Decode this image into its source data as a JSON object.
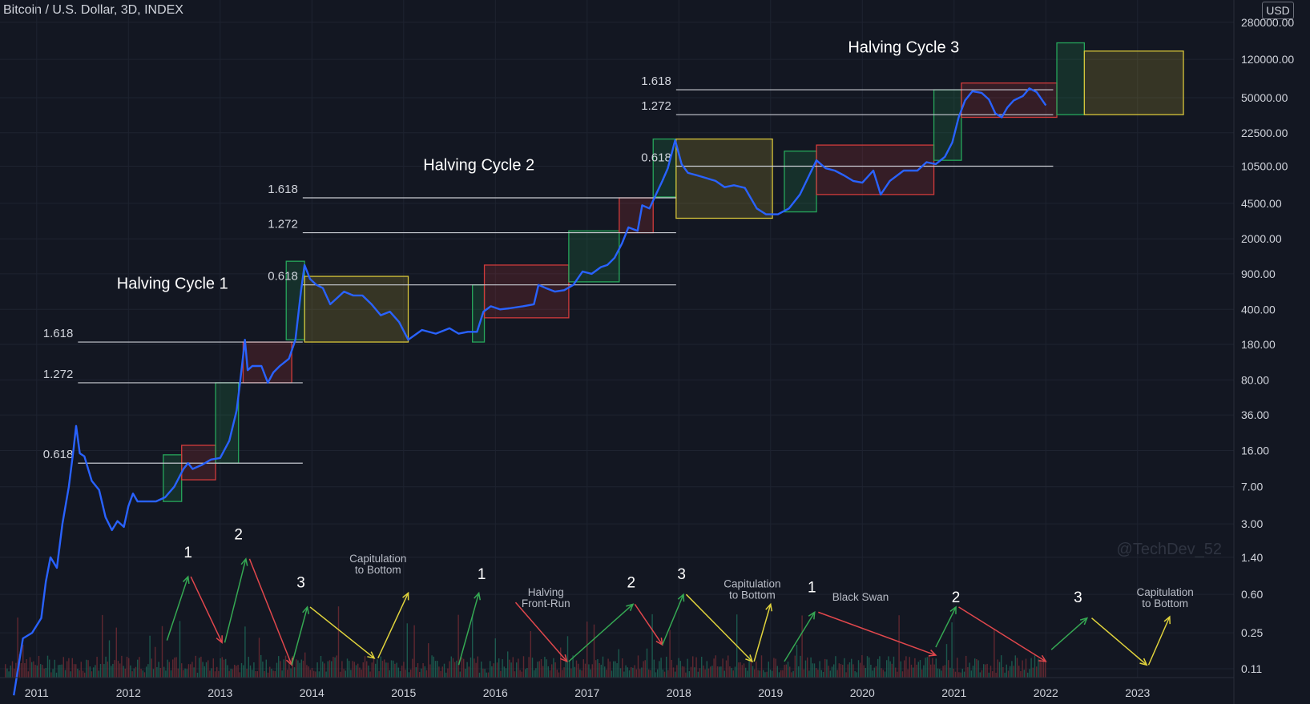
{
  "header": {
    "symbol": "Bitcoin / U.S. Dollar, 3D, INDEX",
    "currency": "USD"
  },
  "watermark": "@TechDev_52",
  "colors": {
    "background": "#131722",
    "price_line": "#2962ff",
    "grid": "#1e2330",
    "green_box": "#26a65b",
    "red_box": "#d03b3b",
    "yellow_box": "#d6c43a",
    "vol_green": "#1f6f5c",
    "vol_red": "#7a2d36"
  },
  "chart_data": {
    "type": "line",
    "title": "Bitcoin / U.S. Dollar, 3D, INDEX",
    "y_scale": "log",
    "ylim": [
      0.09,
      300000
    ],
    "xlim": [
      2010.6,
      2024.05
    ],
    "y_ticks": [
      {
        "v": 280000,
        "label": "280000.00"
      },
      {
        "v": 120000,
        "label": "120000.00"
      },
      {
        "v": 50000,
        "label": "50000.00"
      },
      {
        "v": 22500,
        "label": "22500.00"
      },
      {
        "v": 10500,
        "label": "10500.00"
      },
      {
        "v": 4500,
        "label": "4500.00"
      },
      {
        "v": 2000,
        "label": "2000.00"
      },
      {
        "v": 900,
        "label": "900.00"
      },
      {
        "v": 400,
        "label": "400.00"
      },
      {
        "v": 180,
        "label": "180.00"
      },
      {
        "v": 80,
        "label": "80.00"
      },
      {
        "v": 36,
        "label": "36.00"
      },
      {
        "v": 16,
        "label": "16.00"
      },
      {
        "v": 7,
        "label": "7.00"
      },
      {
        "v": 3,
        "label": "3.00"
      },
      {
        "v": 1.4,
        "label": "1.40"
      },
      {
        "v": 0.6,
        "label": "0.60"
      },
      {
        "v": 0.25,
        "label": "0.25"
      },
      {
        "v": 0.11,
        "label": "0.11"
      }
    ],
    "x_ticks": [
      {
        "v": 2011,
        "label": "2011"
      },
      {
        "v": 2012,
        "label": "2012"
      },
      {
        "v": 2013,
        "label": "2013"
      },
      {
        "v": 2014,
        "label": "2014"
      },
      {
        "v": 2015,
        "label": "2015"
      },
      {
        "v": 2016,
        "label": "2016"
      },
      {
        "v": 2017,
        "label": "2017"
      },
      {
        "v": 2018,
        "label": "2018"
      },
      {
        "v": 2019,
        "label": "2019"
      },
      {
        "v": 2020,
        "label": "2020"
      },
      {
        "v": 2021,
        "label": "2021"
      },
      {
        "v": 2022,
        "label": "2022"
      },
      {
        "v": 2023,
        "label": "2023"
      }
    ],
    "series": [
      {
        "values": [
          [
            2010.75,
            0.06
          ],
          [
            2010.85,
            0.22
          ],
          [
            2010.95,
            0.25
          ],
          [
            2011.05,
            0.35
          ],
          [
            2011.1,
            0.8
          ],
          [
            2011.15,
            1.4
          ],
          [
            2011.22,
            1.1
          ],
          [
            2011.28,
            3.0
          ],
          [
            2011.35,
            7.0
          ],
          [
            2011.4,
            16.0
          ],
          [
            2011.43,
            28.0
          ],
          [
            2011.47,
            15.0
          ],
          [
            2011.52,
            14.0
          ],
          [
            2011.6,
            8.0
          ],
          [
            2011.68,
            6.5
          ],
          [
            2011.75,
            3.5
          ],
          [
            2011.82,
            2.6
          ],
          [
            2011.88,
            3.2
          ],
          [
            2011.95,
            2.8
          ],
          [
            2012.0,
            4.5
          ],
          [
            2012.05,
            6.0
          ],
          [
            2012.1,
            5.0
          ],
          [
            2012.2,
            5.0
          ],
          [
            2012.3,
            5.0
          ],
          [
            2012.4,
            5.5
          ],
          [
            2012.5,
            7.0
          ],
          [
            2012.6,
            10.5
          ],
          [
            2012.65,
            12.0
          ],
          [
            2012.7,
            10.5
          ],
          [
            2012.8,
            11.5
          ],
          [
            2012.9,
            13.0
          ],
          [
            2013.0,
            13.5
          ],
          [
            2013.1,
            20.0
          ],
          [
            2013.18,
            40.0
          ],
          [
            2013.22,
            80.0
          ],
          [
            2013.27,
            200.0
          ],
          [
            2013.3,
            100.0
          ],
          [
            2013.35,
            110.0
          ],
          [
            2013.45,
            110.0
          ],
          [
            2013.52,
            75.0
          ],
          [
            2013.58,
            95.0
          ],
          [
            2013.65,
            110.0
          ],
          [
            2013.75,
            130.0
          ],
          [
            2013.82,
            200.0
          ],
          [
            2013.88,
            600.0
          ],
          [
            2013.92,
            1100.0
          ],
          [
            2013.98,
            800.0
          ],
          [
            2014.05,
            700.0
          ],
          [
            2014.12,
            650.0
          ],
          [
            2014.2,
            450.0
          ],
          [
            2014.35,
            600.0
          ],
          [
            2014.45,
            550.0
          ],
          [
            2014.55,
            550.0
          ],
          [
            2014.65,
            450.0
          ],
          [
            2014.75,
            350.0
          ],
          [
            2014.85,
            380.0
          ],
          [
            2014.95,
            300.0
          ],
          [
            2015.05,
            200.0
          ],
          [
            2015.2,
            250.0
          ],
          [
            2015.35,
            230.0
          ],
          [
            2015.5,
            260.0
          ],
          [
            2015.6,
            230.0
          ],
          [
            2015.7,
            240.0
          ],
          [
            2015.8,
            240.0
          ],
          [
            2015.87,
            380.0
          ],
          [
            2015.95,
            430.0
          ],
          [
            2016.05,
            400.0
          ],
          [
            2016.15,
            410.0
          ],
          [
            2016.3,
            430.0
          ],
          [
            2016.42,
            450.0
          ],
          [
            2016.47,
            700.0
          ],
          [
            2016.55,
            650.0
          ],
          [
            2016.65,
            600.0
          ],
          [
            2016.75,
            620.0
          ],
          [
            2016.85,
            700.0
          ],
          [
            2016.95,
            950.0
          ],
          [
            2017.05,
            900.0
          ],
          [
            2017.15,
            1050.0
          ],
          [
            2017.22,
            1100.0
          ],
          [
            2017.3,
            1300.0
          ],
          [
            2017.38,
            1800.0
          ],
          [
            2017.45,
            2600.0
          ],
          [
            2017.55,
            2400.0
          ],
          [
            2017.6,
            4300.0
          ],
          [
            2017.68,
            4000.0
          ],
          [
            2017.75,
            5500.0
          ],
          [
            2017.82,
            7500.0
          ],
          [
            2017.88,
            10000.0
          ],
          [
            2017.96,
            19000.0
          ],
          [
            2018.03,
            11000.0
          ],
          [
            2018.1,
            9000.0
          ],
          [
            2018.2,
            8500.0
          ],
          [
            2018.3,
            8000.0
          ],
          [
            2018.4,
            7500.0
          ],
          [
            2018.5,
            6500.0
          ],
          [
            2018.6,
            6800.0
          ],
          [
            2018.72,
            6400.0
          ],
          [
            2018.85,
            4000.0
          ],
          [
            2018.95,
            3500.0
          ],
          [
            2019.08,
            3500.0
          ],
          [
            2019.2,
            4000.0
          ],
          [
            2019.32,
            5500.0
          ],
          [
            2019.42,
            8500.0
          ],
          [
            2019.5,
            12000.0
          ],
          [
            2019.6,
            10000.0
          ],
          [
            2019.7,
            9500.0
          ],
          [
            2019.8,
            8500.0
          ],
          [
            2019.9,
            7500.0
          ],
          [
            2020.0,
            7200.0
          ],
          [
            2020.12,
            9500.0
          ],
          [
            2020.2,
            5500.0
          ],
          [
            2020.3,
            7500.0
          ],
          [
            2020.45,
            9500.0
          ],
          [
            2020.6,
            9500.0
          ],
          [
            2020.7,
            11500.0
          ],
          [
            2020.8,
            11000.0
          ],
          [
            2020.9,
            13000.0
          ],
          [
            2020.98,
            18000.0
          ],
          [
            2021.05,
            32000.0
          ],
          [
            2021.12,
            47000.0
          ],
          [
            2021.2,
            58000.0
          ],
          [
            2021.3,
            56000.0
          ],
          [
            2021.38,
            48000.0
          ],
          [
            2021.45,
            35000.0
          ],
          [
            2021.52,
            32000.0
          ],
          [
            2021.58,
            40000.0
          ],
          [
            2021.65,
            47000.0
          ],
          [
            2021.75,
            52000.0
          ],
          [
            2021.82,
            62000.0
          ],
          [
            2021.9,
            57000.0
          ],
          [
            2022.0,
            42000.0
          ]
        ]
      }
    ],
    "boxes": [
      {
        "type": "green",
        "x0": 2012.38,
        "x1": 2012.58,
        "y0": 5.0,
        "y1": 14.5
      },
      {
        "type": "red",
        "x0": 2012.58,
        "x1": 2012.95,
        "y0": 8.2,
        "y1": 18.0
      },
      {
        "type": "green",
        "x0": 2012.95,
        "x1": 2013.2,
        "y0": 12.0,
        "y1": 75.0
      },
      {
        "type": "red",
        "x0": 2013.25,
        "x1": 2013.78,
        "y0": 75.0,
        "y1": 190.0
      },
      {
        "type": "green",
        "x0": 2013.72,
        "x1": 2013.92,
        "y0": 200.0,
        "y1": 1200.0
      },
      {
        "type": "yellow",
        "x0": 2013.92,
        "x1": 2015.05,
        "y0": 190.0,
        "y1": 850.0
      },
      {
        "type": "green",
        "x0": 2015.75,
        "x1": 2015.88,
        "y0": 190.0,
        "y1": 700.0
      },
      {
        "type": "red",
        "x0": 2015.88,
        "x1": 2016.8,
        "y0": 330.0,
        "y1": 1100.0
      },
      {
        "type": "green",
        "x0": 2016.8,
        "x1": 2017.35,
        "y0": 750.0,
        "y1": 2400.0
      },
      {
        "type": "red",
        "x0": 2017.35,
        "x1": 2017.72,
        "y0": 2300.0,
        "y1": 5100.0
      },
      {
        "type": "green",
        "x0": 2017.72,
        "x1": 2017.97,
        "y0": 5200.0,
        "y1": 19500.0
      },
      {
        "type": "yellow",
        "x0": 2017.97,
        "x1": 2019.02,
        "y0": 3200.0,
        "y1": 19500.0
      },
      {
        "type": "green",
        "x0": 2019.15,
        "x1": 2019.5,
        "y0": 3700.0,
        "y1": 14800.0
      },
      {
        "type": "red",
        "x0": 2019.5,
        "x1": 2020.78,
        "y0": 5500.0,
        "y1": 17000.0
      },
      {
        "type": "green",
        "x0": 2020.78,
        "x1": 2021.08,
        "y0": 12000.0,
        "y1": 60000.0
      },
      {
        "type": "red",
        "x0": 2021.08,
        "x1": 2022.12,
        "y0": 32000.0,
        "y1": 70000.0
      },
      {
        "type": "green",
        "x0": 2022.12,
        "x1": 2022.42,
        "y0": 34000.0,
        "y1": 175000.0
      },
      {
        "type": "yellow",
        "x0": 2022.42,
        "x1": 2023.5,
        "y0": 34000.0,
        "y1": 145000.0
      }
    ],
    "fib_lines": [
      {
        "label": "1.618",
        "v": 190.0,
        "x0": 2011.45,
        "x1": 2013.9
      },
      {
        "label": "1.272",
        "v": 75.0,
        "x0": 2011.45,
        "x1": 2013.9
      },
      {
        "label": "0.618",
        "v": 12.0,
        "x0": 2011.45,
        "x1": 2013.9
      },
      {
        "label": "1.618",
        "v": 5100.0,
        "x0": 2013.9,
        "x1": 2017.97
      },
      {
        "label": "1.272",
        "v": 2300.0,
        "x0": 2013.9,
        "x1": 2017.97
      },
      {
        "label": "0.618",
        "v": 700.0,
        "x0": 2013.9,
        "x1": 2017.97
      },
      {
        "label": "1.618",
        "v": 60000.0,
        "x0": 2017.97,
        "x1": 2022.08
      },
      {
        "label": "1.272",
        "v": 34000.0,
        "x0": 2017.97,
        "x1": 2022.08
      },
      {
        "label": "0.618",
        "v": 10500.0,
        "x0": 2017.97,
        "x1": 2022.08
      }
    ],
    "cycle_labels": [
      {
        "text": "Halving Cycle 1",
        "x": 2012.48,
        "v": 640.0
      },
      {
        "text": "Halving Cycle 2",
        "x": 2015.82,
        "v": 9600.0
      },
      {
        "text": "Halving Cycle 3",
        "x": 2020.45,
        "v": 140000.0
      }
    ],
    "cycle_numbers": [
      {
        "text": "1",
        "x": 2012.65,
        "v": 1.4
      },
      {
        "text": "2",
        "x": 2013.2,
        "v": 2.1
      },
      {
        "text": "3",
        "x": 2013.88,
        "v": 0.7
      },
      {
        "text": "1",
        "x": 2015.85,
        "v": 0.85
      },
      {
        "text": "2",
        "x": 2017.48,
        "v": 0.7
      },
      {
        "text": "3",
        "x": 2018.03,
        "v": 0.85
      },
      {
        "text": "1",
        "x": 2019.45,
        "v": 0.63
      },
      {
        "text": "2",
        "x": 2021.02,
        "v": 0.5
      },
      {
        "text": "3",
        "x": 2022.35,
        "v": 0.5
      }
    ],
    "annotations": [
      {
        "lines": [
          "Capitulation",
          "to Bottom"
        ],
        "x": 2014.72,
        "v": 1.25
      },
      {
        "lines": [
          "Halving",
          "Front-Run"
        ],
        "x": 2016.55,
        "v": 0.58
      },
      {
        "lines": [
          "Capitulation",
          "to Bottom"
        ],
        "x": 2018.8,
        "v": 0.7
      },
      {
        "lines": [
          "Black Swan"
        ],
        "x": 2019.98,
        "v": 0.52
      },
      {
        "lines": [
          "Capitulation",
          "to Bottom"
        ],
        "x": 2023.3,
        "v": 0.58
      }
    ],
    "arrows": [
      {
        "color": "green",
        "x0": 2012.42,
        "y0": 0.21,
        "x1": 2012.65,
        "y1": 0.9
      },
      {
        "color": "red",
        "x0": 2012.68,
        "y0": 0.9,
        "x1": 2013.02,
        "y1": 0.2
      },
      {
        "color": "green",
        "x0": 2013.05,
        "y0": 0.2,
        "x1": 2013.28,
        "y1": 1.35
      },
      {
        "color": "red",
        "x0": 2013.32,
        "y0": 1.35,
        "x1": 2013.78,
        "y1": 0.12
      },
      {
        "color": "green",
        "x0": 2013.78,
        "y0": 0.12,
        "x1": 2013.95,
        "y1": 0.45
      },
      {
        "color": "yellow",
        "x0": 2013.98,
        "y0": 0.45,
        "x1": 2014.68,
        "y1": 0.14
      },
      {
        "color": "yellow",
        "x0": 2014.72,
        "y0": 0.14,
        "x1": 2015.05,
        "y1": 0.62
      },
      {
        "color": "green",
        "x0": 2015.6,
        "y0": 0.12,
        "x1": 2015.82,
        "y1": 0.62
      },
      {
        "color": "red",
        "x0": 2016.22,
        "y0": 0.5,
        "x1": 2016.78,
        "y1": 0.13
      },
      {
        "color": "green",
        "x0": 2016.8,
        "y0": 0.13,
        "x1": 2017.5,
        "y1": 0.48
      },
      {
        "color": "red",
        "x0": 2017.52,
        "y0": 0.48,
        "x1": 2017.82,
        "y1": 0.19
      },
      {
        "color": "green",
        "x0": 2017.82,
        "y0": 0.19,
        "x1": 2018.05,
        "y1": 0.6
      },
      {
        "color": "yellow",
        "x0": 2018.08,
        "y0": 0.6,
        "x1": 2018.8,
        "y1": 0.13
      },
      {
        "color": "yellow",
        "x0": 2018.82,
        "y0": 0.13,
        "x1": 2019.0,
        "y1": 0.48
      },
      {
        "color": "green",
        "x0": 2019.15,
        "y0": 0.13,
        "x1": 2019.48,
        "y1": 0.4
      },
      {
        "color": "red",
        "x0": 2019.52,
        "y0": 0.4,
        "x1": 2020.8,
        "y1": 0.15
      },
      {
        "color": "green",
        "x0": 2020.8,
        "y0": 0.18,
        "x1": 2021.02,
        "y1": 0.45
      },
      {
        "color": "red",
        "x0": 2021.05,
        "y0": 0.45,
        "x1": 2022.0,
        "y1": 0.13
      },
      {
        "color": "green",
        "x0": 2022.06,
        "y0": 0.17,
        "x1": 2022.45,
        "y1": 0.35
      },
      {
        "color": "yellow",
        "x0": 2022.5,
        "y0": 0.35,
        "x1": 2023.1,
        "y1": 0.12
      },
      {
        "color": "yellow",
        "x0": 2023.12,
        "y0": 0.12,
        "x1": 2023.35,
        "y1": 0.36
      }
    ]
  }
}
